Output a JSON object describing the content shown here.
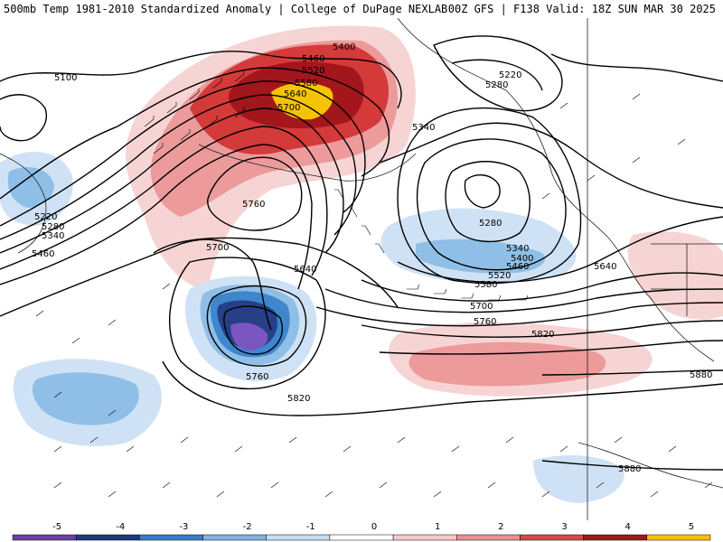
{
  "header": {
    "title_left": "500mb Temp 1981-2010 Standardized Anomaly | College of DuPage NEXLAB",
    "title_right": "00Z GFS | F138 Valid: 18Z SUN MAR 30 2025"
  },
  "contour_labels": [
    "5100",
    "5400",
    "5460",
    "5520",
    "5580",
    "5640",
    "5700",
    "5220",
    "5280",
    "5340",
    "5760",
    "5220",
    "5280",
    "5340",
    "5460",
    "5700",
    "5640",
    "5760",
    "5820",
    "5280",
    "5340",
    "5400",
    "5460",
    "5520",
    "5580",
    "5640",
    "5700",
    "5760",
    "5820",
    "5880",
    "5880"
  ],
  "colorbar": {
    "ticks": [
      "-5",
      "-4",
      "-3",
      "-2",
      "-1",
      "0",
      "1",
      "2",
      "3",
      "4",
      "5"
    ],
    "colors": [
      "#6a3fa8",
      "#1f3a7a",
      "#3a7cc8",
      "#7fb3e0",
      "#c5dcf2",
      "#ffffff",
      "#f6caca",
      "#e99090",
      "#d84848",
      "#a01818",
      "#f2c200"
    ]
  },
  "map_colors": {
    "warm_light": "#f7d4d4",
    "warm_mid": "#ec9a9a",
    "warm_strong": "#d43a3a",
    "warm_very": "#a3161c",
    "warm_extreme": "#f5c400",
    "cold_light": "#cfe2f5",
    "cold_mid": "#8fbfe6",
    "cold_strong": "#3f86cc",
    "cold_very": "#263f86",
    "cold_extreme": "#7b55c0"
  }
}
